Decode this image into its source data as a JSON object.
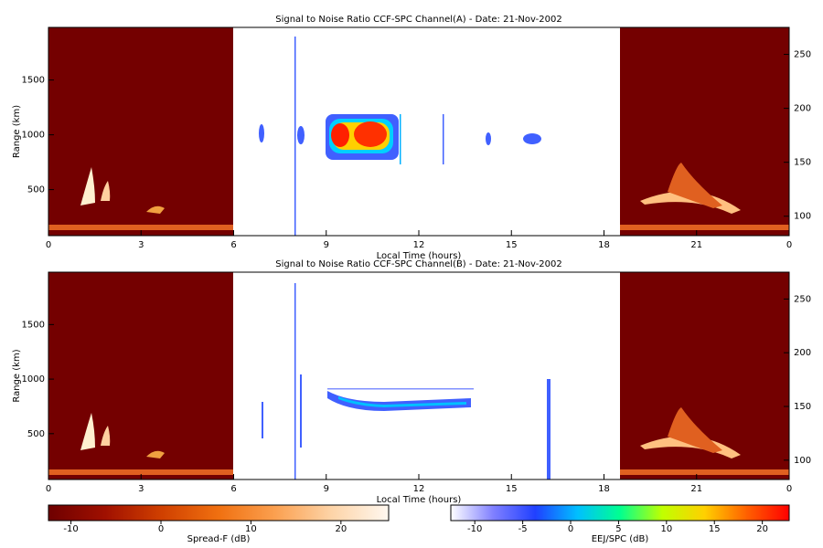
{
  "chart_data": [
    {
      "type": "heatmap",
      "title": "Signal to Noise Ratio CCF-SPC Channel(A) - Date: 21-Nov-2002",
      "xlabel": "Local Time (hours)",
      "ylabel": "Range (km)",
      "xlim": [
        0,
        24
      ],
      "xticks": [
        0,
        3,
        6,
        9,
        12,
        15,
        18,
        21,
        {
          "value": 24,
          "label": "0"
        }
      ],
      "ylim": [
        80,
        1980
      ],
      "yticks": [
        500,
        1000,
        1500
      ],
      "y2lim": [
        82,
        275
      ],
      "y2ticks": [
        100,
        150,
        200,
        250
      ]
    },
    {
      "type": "heatmap",
      "title": "Signal to Noise Ratio CCF-SPC Channel(B) - Date: 21-Nov-2002",
      "xlabel": "Local Time (hours)",
      "ylabel": "Range (km)",
      "xlim": [
        0,
        24
      ],
      "xticks": [
        0,
        3,
        6,
        9,
        12,
        15,
        18,
        21,
        {
          "value": 24,
          "label": "0"
        }
      ],
      "ylim": [
        80,
        1980
      ],
      "yticks": [
        500,
        1000,
        1500
      ],
      "y2lim": [
        82,
        275
      ],
      "y2ticks": [
        100,
        150,
        200,
        250
      ]
    }
  ],
  "colorbars": [
    {
      "label": "Spread-F (dB)",
      "xlim": [
        -12.5,
        25.3
      ],
      "ticks": [
        -10,
        0,
        10,
        20
      ],
      "colors": [
        "#6e0000",
        "#a01000",
        "#d04000",
        "#f07010",
        "#fba050",
        "#fdd4a8",
        "#fff8f0"
      ]
    },
    {
      "label": "EEJ/SPC (dB)",
      "xlim": [
        -12.5,
        22.8
      ],
      "ticks": [
        -10,
        -5,
        0,
        5,
        10,
        15,
        20
      ],
      "colors": [
        "#ffffff",
        "#8080ff",
        "#2040ff",
        "#00c0ff",
        "#00ff90",
        "#c0ff00",
        "#ffd000",
        "#ff6000",
        "#ff0000"
      ]
    }
  ]
}
